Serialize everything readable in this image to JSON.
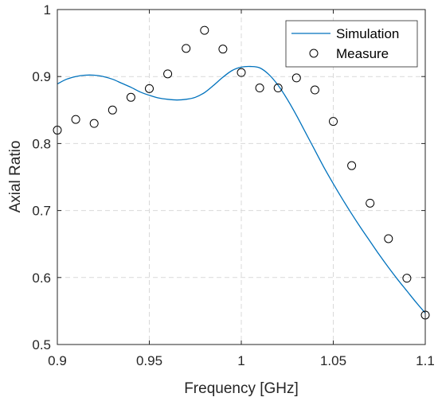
{
  "chart_data": {
    "type": "line",
    "title": "",
    "xlabel": "Frequency [GHz]",
    "ylabel": "Axial Ratio",
    "xlim": [
      0.9,
      1.1
    ],
    "ylim": [
      0.5,
      1.0
    ],
    "xticks": [
      0.9,
      0.95,
      1.0,
      1.05,
      1.1
    ],
    "xtick_labels": [
      "0.9",
      "0.95",
      "1",
      "1.05",
      "1.1"
    ],
    "yticks": [
      0.5,
      0.6,
      0.7,
      0.8,
      0.9,
      1.0
    ],
    "ytick_labels": [
      "0.5",
      "0.6",
      "0.7",
      "0.8",
      "0.9",
      "1"
    ],
    "grid": true,
    "legend_position": "top-right",
    "series": [
      {
        "name": "Simulation",
        "style": "line",
        "color": "#0072BD",
        "x": [
          0.9,
          0.905,
          0.91,
          0.915,
          0.92,
          0.925,
          0.93,
          0.935,
          0.94,
          0.945,
          0.95,
          0.955,
          0.96,
          0.965,
          0.97,
          0.975,
          0.98,
          0.985,
          0.99,
          0.995,
          1.0,
          1.005,
          1.01,
          1.015,
          1.02,
          1.025,
          1.03,
          1.035,
          1.04,
          1.045,
          1.05,
          1.055,
          1.06,
          1.065,
          1.07,
          1.075,
          1.08,
          1.085,
          1.09,
          1.095,
          1.1
        ],
        "y": [
          0.889,
          0.896,
          0.9,
          0.902,
          0.902,
          0.9,
          0.896,
          0.89,
          0.884,
          0.877,
          0.872,
          0.868,
          0.866,
          0.865,
          0.866,
          0.869,
          0.876,
          0.887,
          0.899,
          0.909,
          0.914,
          0.915,
          0.913,
          0.903,
          0.887,
          0.866,
          0.842,
          0.816,
          0.79,
          0.764,
          0.74,
          0.717,
          0.695,
          0.674,
          0.654,
          0.634,
          0.615,
          0.597,
          0.58,
          0.563,
          0.547
        ]
      },
      {
        "name": "Measure",
        "style": "marker",
        "color": "#000000",
        "x": [
          0.9,
          0.91,
          0.92,
          0.93,
          0.94,
          0.95,
          0.96,
          0.97,
          0.98,
          0.99,
          1.0,
          1.01,
          1.02,
          1.03,
          1.04,
          1.05,
          1.06,
          1.07,
          1.08,
          1.09,
          1.1
        ],
        "y": [
          0.82,
          0.836,
          0.83,
          0.85,
          0.869,
          0.882,
          0.904,
          0.942,
          0.969,
          0.941,
          0.906,
          0.883,
          0.883,
          0.898,
          0.88,
          0.833,
          0.767,
          0.711,
          0.658,
          0.599,
          0.544
        ]
      }
    ]
  }
}
